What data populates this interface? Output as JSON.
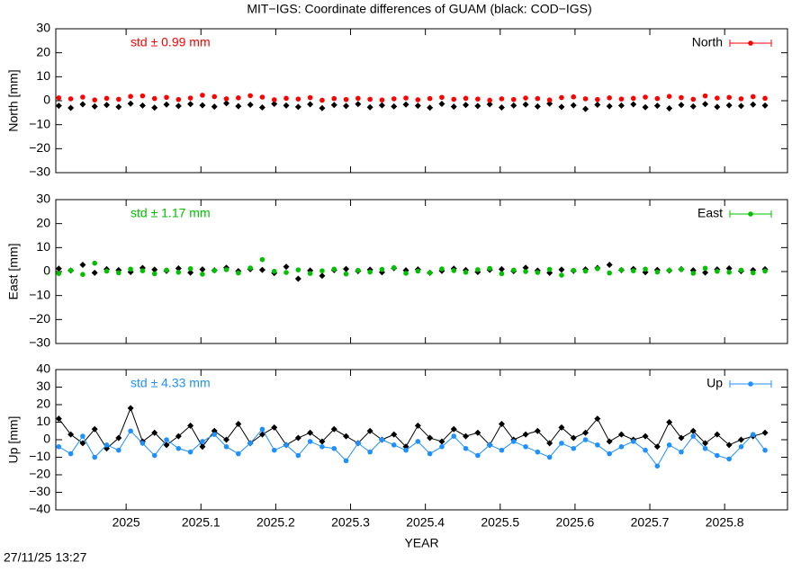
{
  "title": "MIT−IGS: Coordinate differences of GUAM (black: COD−IGS)",
  "timestamp": "27/11/25 13:27",
  "chart_data": [
    {
      "type": "scatter",
      "ylabel": "North [mm]",
      "annotation": "std ± 0.99 mm",
      "legend": "upper right",
      "xlim": [
        2024.906,
        2025.884
      ],
      "xticks": [
        2025,
        2025.1,
        2025.2,
        2025.3,
        2025.4,
        2025.5,
        2025.6,
        2025.7,
        2025.8
      ],
      "ylim": [
        -30,
        30
      ],
      "yticks": [
        {
          "value": -30,
          "label": "−30"
        },
        {
          "value": -20,
          "label": "−20"
        },
        {
          "value": -10,
          "label": "−10"
        },
        0,
        10,
        20,
        30
      ],
      "x": [
        2024.91,
        2024.926,
        2024.942,
        2024.958,
        2024.974,
        2024.99,
        2025.006,
        2025.022,
        2025.038,
        2025.054,
        2025.07,
        2025.086,
        2025.102,
        2025.118,
        2025.134,
        2025.15,
        2025.166,
        2025.182,
        2025.198,
        2025.214,
        2025.23,
        2025.246,
        2025.262,
        2025.278,
        2025.294,
        2025.31,
        2025.326,
        2025.342,
        2025.358,
        2025.374,
        2025.39,
        2025.406,
        2025.422,
        2025.438,
        2025.454,
        2025.47,
        2025.486,
        2025.502,
        2025.518,
        2025.534,
        2025.55,
        2025.566,
        2025.582,
        2025.598,
        2025.614,
        2025.63,
        2025.646,
        2025.662,
        2025.678,
        2025.694,
        2025.71,
        2025.726,
        2025.742,
        2025.758,
        2025.774,
        2025.79,
        2025.806,
        2025.822,
        2025.838,
        2025.854
      ],
      "series": [
        {
          "color": "#000000",
          "values": [
            -2.1,
            -3.0,
            -1.5,
            -2.4,
            -1.8,
            -2.6,
            -1.2,
            -2.0,
            -2.9,
            -1.6,
            -2.2,
            -1.4,
            -1.9,
            -2.5,
            -1.1,
            -2.3,
            -1.7,
            -2.8,
            -1.3,
            -2.0,
            -2.6,
            -1.5,
            -3.1,
            -1.8,
            -2.2,
            -1.4,
            -2.7,
            -1.9,
            -2.4,
            -1.6,
            -2.1,
            -2.9,
            -1.3,
            -2.5,
            -1.8,
            -2.2,
            -1.5,
            -2.8,
            -2.0,
            -1.6,
            -2.4,
            -1.2,
            -2.6,
            -1.9,
            -3.4,
            -1.7,
            -2.3,
            -2.0,
            -1.5,
            -2.7,
            -2.1,
            -3.2,
            -1.8,
            -2.4,
            -1.4,
            -2.6,
            -1.9,
            -2.2,
            -1.6,
            -2.0
          ]
        },
        {
          "name": "North",
          "color": "#ff0000",
          "values": [
            1.2,
            0.8,
            1.5,
            0.3,
            1.0,
            0.6,
            1.8,
            2.0,
            0.9,
            1.4,
            0.5,
            1.1,
            2.3,
            1.7,
            0.8,
            1.2,
            2.1,
            1.5,
            0.4,
            1.0,
            0.7,
            1.3,
            0.2,
            0.9,
            0.5,
            1.0,
            0.6,
            0.3,
            0.8,
            1.1,
            0.4,
            0.9,
            1.4,
            0.6,
            1.0,
            0.7,
            0.2,
            0.8,
            0.5,
            1.1,
            0.9,
            0.3,
            1.3,
            1.6,
            0.8,
            0.5,
            1.2,
            0.7,
            1.0,
            1.5,
            0.9,
            1.8,
            1.3,
            0.6,
            2.0,
            1.1,
            1.4,
            0.8,
            1.7,
            1.0
          ]
        }
      ]
    },
    {
      "type": "scatter",
      "ylabel": "East [mm]",
      "annotation": "std ± 1.17 mm",
      "legend": "upper right",
      "xlim": [
        2024.906,
        2025.884
      ],
      "xticks": [
        2025,
        2025.1,
        2025.2,
        2025.3,
        2025.4,
        2025.5,
        2025.6,
        2025.7,
        2025.8
      ],
      "ylim": [
        -30,
        30
      ],
      "yticks": [
        {
          "value": -30,
          "label": "−30"
        },
        {
          "value": -20,
          "label": "−20"
        },
        {
          "value": -10,
          "label": "−10"
        },
        0,
        10,
        20,
        30
      ],
      "x": [
        2024.91,
        2024.926,
        2024.942,
        2024.958,
        2024.974,
        2024.99,
        2025.006,
        2025.022,
        2025.038,
        2025.054,
        2025.07,
        2025.086,
        2025.102,
        2025.118,
        2025.134,
        2025.15,
        2025.166,
        2025.182,
        2025.198,
        2025.214,
        2025.23,
        2025.246,
        2025.262,
        2025.278,
        2025.294,
        2025.31,
        2025.326,
        2025.342,
        2025.358,
        2025.374,
        2025.39,
        2025.406,
        2025.422,
        2025.438,
        2025.454,
        2025.47,
        2025.486,
        2025.502,
        2025.518,
        2025.534,
        2025.55,
        2025.566,
        2025.582,
        2025.598,
        2025.614,
        2025.63,
        2025.646,
        2025.662,
        2025.678,
        2025.694,
        2025.71,
        2025.726,
        2025.742,
        2025.758,
        2025.774,
        2025.79,
        2025.806,
        2025.822,
        2025.838,
        2025.854
      ],
      "series": [
        {
          "color": "#000000",
          "values": [
            1.2,
            0.4,
            2.8,
            -0.5,
            1.0,
            0.6,
            -0.2,
            1.5,
            0.8,
            0.3,
            1.3,
            -0.4,
            0.9,
            0.5,
            1.6,
            0.2,
            1.0,
            0.7,
            -0.6,
            2.0,
            -3.0,
            0.4,
            -1.8,
            0.6,
            1.1,
            0.2,
            0.8,
            -0.3,
            1.4,
            0.5,
            0.9,
            -0.5,
            0.3,
            1.2,
            0.6,
            -0.2,
            0.7,
            1.0,
            0.2,
            1.6,
            0.4,
            -0.5,
            0.8,
            0.3,
            0.9,
            1.5,
            2.8,
            0.6,
            1.1,
            -0.3,
            0.7,
            0.4,
            1.0,
            0.5,
            -0.4,
            0.9,
            1.3,
            0.2,
            0.6,
            1.0
          ]
        },
        {
          "name": "East",
          "color": "#00c000",
          "values": [
            -0.8,
            0.5,
            -1.2,
            3.5,
            0.2,
            -0.5,
            1.0,
            0.3,
            -0.9,
            0.6,
            -0.3,
            1.2,
            -1.1,
            0.4,
            0.8,
            -0.6,
            1.5,
            5.0,
            0.1,
            -0.4,
            0.7,
            -0.8,
            0.3,
            1.0,
            -1.0,
            0.5,
            -0.2,
            0.9,
            1.6,
            -0.7,
            0.2,
            -0.5,
            1.1,
            0.4,
            -0.3,
            0.8,
            1.3,
            -0.9,
            0.6,
            0,
            -0.4,
            0.9,
            -1.5,
            0.5,
            0.2,
            1.2,
            -0.6,
            0.7,
            0.3,
            1.0,
            -0.2,
            0.5,
            0.9,
            -0.7,
            1.4,
            0.1,
            -0.3,
            0.6,
            -0.5,
            0.2
          ]
        }
      ]
    },
    {
      "type": "line",
      "ylabel": "Up [mm]",
      "xlabel": "YEAR",
      "annotation": "std ± 4.33 mm",
      "legend": "upper right",
      "xlim": [
        2024.906,
        2025.884
      ],
      "xticks": [
        2025,
        2025.1,
        2025.2,
        2025.3,
        2025.4,
        2025.5,
        2025.6,
        2025.7,
        2025.8
      ],
      "ylim": [
        -40,
        40
      ],
      "yticks": [
        {
          "value": -40,
          "label": "−40"
        },
        {
          "value": -30,
          "label": "−30"
        },
        {
          "value": -20,
          "label": "−20"
        },
        {
          "value": -10,
          "label": "−10"
        },
        0,
        10,
        20,
        30,
        40
      ],
      "x": [
        2024.91,
        2024.926,
        2024.942,
        2024.958,
        2024.974,
        2024.99,
        2025.006,
        2025.022,
        2025.038,
        2025.054,
        2025.07,
        2025.086,
        2025.102,
        2025.118,
        2025.134,
        2025.15,
        2025.166,
        2025.182,
        2025.198,
        2025.214,
        2025.23,
        2025.246,
        2025.262,
        2025.278,
        2025.294,
        2025.31,
        2025.326,
        2025.342,
        2025.358,
        2025.374,
        2025.39,
        2025.406,
        2025.422,
        2025.438,
        2025.454,
        2025.47,
        2025.486,
        2025.502,
        2025.518,
        2025.534,
        2025.55,
        2025.566,
        2025.582,
        2025.598,
        2025.614,
        2025.63,
        2025.646,
        2025.662,
        2025.678,
        2025.694,
        2025.71,
        2025.726,
        2025.742,
        2025.758,
        2025.774,
        2025.79,
        2025.806,
        2025.822,
        2025.838,
        2025.854
      ],
      "series": [
        {
          "color": "#000000",
          "values": [
            12,
            3,
            -2,
            6,
            -5,
            1,
            18,
            -1,
            4,
            -3,
            2,
            8,
            -4,
            5,
            0,
            9,
            -2,
            3,
            7,
            -3,
            1,
            4,
            -1,
            6,
            2,
            -2,
            5,
            0,
            3,
            -4,
            8,
            1,
            -1,
            6,
            2,
            4,
            -3,
            9,
            0,
            3,
            5,
            -2,
            7,
            1,
            4,
            12,
            -1,
            3,
            0,
            2,
            -4,
            10,
            1,
            5,
            -2,
            3,
            -3,
            0,
            2,
            4
          ]
        },
        {
          "name": "Up",
          "color": "#1e90ff",
          "values": [
            -4,
            -8,
            2,
            -10,
            -3,
            -6,
            5,
            -2,
            -9,
            0,
            -5,
            -7,
            -1,
            3,
            -4,
            -8,
            -2,
            6,
            -6,
            -3,
            -9,
            -1,
            -4,
            -5,
            -12,
            -2,
            -7,
            0,
            -3,
            -6,
            -1,
            -8,
            -4,
            2,
            -5,
            -9,
            -3,
            -6,
            -1,
            -4,
            -7,
            -10,
            -2,
            -5,
            0,
            -3,
            -8,
            -4,
            -1,
            -6,
            -15,
            -3,
            -7,
            2,
            -5,
            -9,
            -11,
            -4,
            3,
            -6
          ]
        }
      ]
    }
  ]
}
